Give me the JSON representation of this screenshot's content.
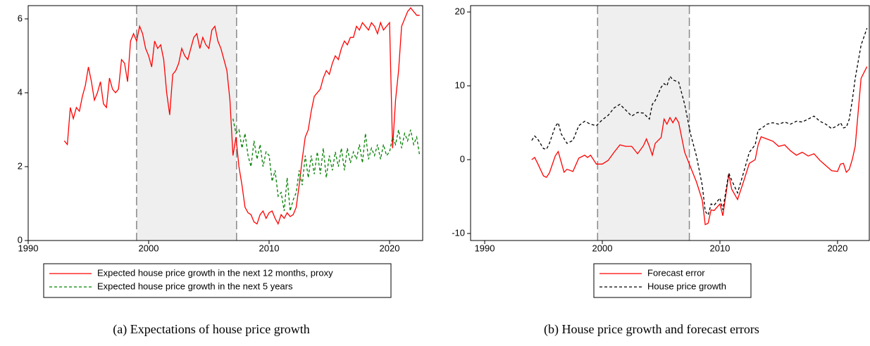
{
  "chart_data": [
    {
      "type": "line",
      "caption": "(a) Expectations of house price growth",
      "xlim": [
        1990,
        2022.75
      ],
      "ylim": [
        0,
        6.36
      ],
      "xticks": [
        1990,
        2000,
        2010,
        2020
      ],
      "yticks": [
        0,
        2,
        4,
        6
      ],
      "shaded_region": [
        1999,
        2007.3
      ],
      "legend": "bottom",
      "series": [
        {
          "name": "Expected house price growth in the next 12 months, proxy",
          "color": "#ff0000",
          "line_style": "solid",
          "x": [
            1993,
            1993.25,
            1993.5,
            1993.75,
            1994,
            1994.25,
            1994.5,
            1994.75,
            1995,
            1995.25,
            1995.5,
            1995.75,
            1996,
            1996.25,
            1996.5,
            1996.75,
            1997,
            1997.25,
            1997.5,
            1997.75,
            1998,
            1998.25,
            1998.5,
            1998.75,
            1999,
            1999.25,
            1999.5,
            1999.75,
            2000,
            2000.25,
            2000.5,
            2000.75,
            2001,
            2001.25,
            2001.5,
            2001.75,
            2002,
            2002.25,
            2002.5,
            2002.75,
            2003,
            2003.25,
            2003.5,
            2003.75,
            2004,
            2004.25,
            2004.5,
            2004.75,
            2005,
            2005.25,
            2005.5,
            2005.75,
            2006,
            2006.25,
            2006.5,
            2006.75,
            2007,
            2007.25,
            2007.5,
            2007.75,
            2008,
            2008.25,
            2008.5,
            2008.75,
            2009,
            2009.25,
            2009.5,
            2009.75,
            2010,
            2010.25,
            2010.5,
            2010.75,
            2011,
            2011.25,
            2011.5,
            2011.75,
            2012,
            2012.25,
            2012.5,
            2012.75,
            2013,
            2013.25,
            2013.5,
            2013.75,
            2014,
            2014.25,
            2014.5,
            2014.75,
            2015,
            2015.25,
            2015.5,
            2015.75,
            2016,
            2016.25,
            2016.5,
            2016.75,
            2017,
            2017.25,
            2017.5,
            2017.75,
            2018,
            2018.25,
            2018.5,
            2018.75,
            2019,
            2019.25,
            2019.5,
            2019.75,
            2020,
            2020.25,
            2020.5,
            2020.75,
            2021,
            2021.25,
            2021.5,
            2021.75,
            2022,
            2022.25,
            2022.5
          ],
          "values": [
            2.7,
            2.6,
            3.6,
            3.3,
            3.6,
            3.5,
            3.9,
            4.2,
            4.7,
            4.3,
            3.8,
            4.0,
            4.3,
            3.7,
            3.6,
            4.4,
            4.1,
            4.0,
            4.1,
            4.9,
            4.8,
            4.3,
            5.4,
            5.6,
            5.4,
            5.8,
            5.6,
            5.2,
            5.0,
            4.7,
            5.4,
            5.2,
            5.3,
            4.9,
            4.0,
            3.4,
            4.5,
            4.6,
            4.8,
            5.2,
            5.0,
            4.9,
            5.2,
            5.5,
            5.6,
            5.2,
            5.5,
            5.3,
            5.2,
            5.7,
            5.8,
            5.4,
            5.2,
            4.9,
            4.6,
            3.8,
            2.3,
            2.8,
            2.0,
            1.5,
            0.9,
            0.75,
            0.7,
            0.5,
            0.45,
            0.7,
            0.8,
            0.6,
            0.75,
            0.8,
            0.6,
            0.45,
            0.7,
            0.6,
            0.75,
            0.65,
            0.7,
            0.9,
            1.5,
            2.2,
            2.8,
            3.0,
            3.5,
            3.9,
            4.0,
            4.1,
            4.4,
            4.6,
            4.5,
            4.8,
            5.0,
            4.9,
            5.2,
            5.4,
            5.3,
            5.5,
            5.5,
            5.8,
            5.7,
            5.9,
            5.8,
            5.7,
            5.9,
            5.8,
            5.6,
            5.9,
            5.7,
            5.8,
            5.9,
            2.5,
            3.8,
            4.6,
            5.8,
            6.0,
            6.2,
            6.3,
            6.2,
            6.1,
            6.1
          ]
        },
        {
          "name": "Expected house price growth in the next 5 years",
          "color": "#008000",
          "line_style": "dashed",
          "x": [
            2007,
            2007.25,
            2007.5,
            2007.75,
            2008,
            2008.25,
            2008.5,
            2008.75,
            2009,
            2009.25,
            2009.5,
            2009.75,
            2010,
            2010.25,
            2010.5,
            2010.75,
            2011,
            2011.25,
            2011.5,
            2011.75,
            2012,
            2012.25,
            2012.5,
            2012.75,
            2013,
            2013.25,
            2013.5,
            2013.75,
            2014,
            2014.25,
            2014.5,
            2014.75,
            2015,
            2015.25,
            2015.5,
            2015.75,
            2016,
            2016.25,
            2016.5,
            2016.75,
            2017,
            2017.25,
            2017.5,
            2017.75,
            2018,
            2018.25,
            2018.5,
            2018.75,
            2019,
            2019.25,
            2019.5,
            2019.75,
            2020,
            2020.25,
            2020.5,
            2020.75,
            2021,
            2021.25,
            2021.5,
            2021.75,
            2022,
            2022.25,
            2022.5
          ],
          "values": [
            3.3,
            2.9,
            3.0,
            2.5,
            2.9,
            2.3,
            2.0,
            2.7,
            2.2,
            2.6,
            2.0,
            2.4,
            2.3,
            1.6,
            1.9,
            1.2,
            1.3,
            0.8,
            1.7,
            0.8,
            1.1,
            1.3,
            1.9,
            1.5,
            2.3,
            1.7,
            2.3,
            1.8,
            2.4,
            1.8,
            2.5,
            1.7,
            2.3,
            1.9,
            2.4,
            2.0,
            2.5,
            1.9,
            2.5,
            2.1,
            2.4,
            2.2,
            2.6,
            2.1,
            2.9,
            2.2,
            2.5,
            2.3,
            2.6,
            2.2,
            2.6,
            2.3,
            2.4,
            2.8,
            2.6,
            3.0,
            2.5,
            2.9,
            2.7,
            3.0,
            2.6,
            2.8,
            2.3
          ]
        }
      ]
    },
    {
      "type": "line",
      "caption": "(b) House price growth and forecast errors",
      "xlim": [
        1988.8,
        2022.7
      ],
      "ylim": [
        -10.95,
        20.86
      ],
      "xticks": [
        1990,
        2000,
        2010,
        2020
      ],
      "yticks": [
        -10,
        0,
        10,
        20
      ],
      "shaded_region": [
        1999.6,
        2007.4
      ],
      "legend": "bottom",
      "series": [
        {
          "name": "Forecast error",
          "color": "#ff0000",
          "line_style": "solid",
          "x": [
            1994,
            1994.25,
            1994.5,
            1995,
            1995.25,
            1995.5,
            1996,
            1996.25,
            1996.5,
            1996.75,
            1997,
            1997.5,
            1998,
            1998.5,
            1998.75,
            1999,
            1999.5,
            2000,
            2000.5,
            2001,
            2001.5,
            2002,
            2002.5,
            2003,
            2003.5,
            2003.75,
            2004,
            2004.25,
            2004.5,
            2005,
            2005.25,
            2005.5,
            2005.75,
            2006,
            2006.25,
            2006.5,
            2007,
            2007.5,
            2008,
            2008.5,
            2008.75,
            2009,
            2009.25,
            2009.5,
            2010,
            2010.25,
            2010.75,
            2011,
            2011.5,
            2012,
            2012.5,
            2013,
            2013.25,
            2013.5,
            2014,
            2014.5,
            2015,
            2015.5,
            2016,
            2016.5,
            2017,
            2017.5,
            2018,
            2018.5,
            2019,
            2019.5,
            2020,
            2020.25,
            2020.5,
            2020.75,
            2021,
            2021.25,
            2021.5,
            2022,
            2022.5
          ],
          "values": [
            0,
            0.3,
            -0.5,
            -2.2,
            -2.4,
            -1.8,
            0.5,
            1.1,
            -0.3,
            -1.7,
            -1.3,
            -1.6,
            0.2,
            0.6,
            0.3,
            0.6,
            -0.6,
            -0.6,
            -0.1,
            1.0,
            2.0,
            1.8,
            1.8,
            0.8,
            1.9,
            2.8,
            1.8,
            0.6,
            2.2,
            3.0,
            5.5,
            4.8,
            5.7,
            5.0,
            5.7,
            5.0,
            1.0,
            -1.0,
            -3.0,
            -5.5,
            -8.8,
            -8.6,
            -6.8,
            -6.9,
            -6.0,
            -7.6,
            -2.0,
            -4.0,
            -5.4,
            -3.0,
            -0.5,
            0.0,
            2.0,
            3.1,
            2.8,
            2.5,
            1.8,
            2.0,
            1.2,
            0.6,
            1.0,
            0.5,
            0.8,
            -0.1,
            -0.8,
            -1.5,
            -1.6,
            -0.6,
            -0.5,
            -1.7,
            -1.3,
            0,
            1.8,
            11,
            12.6
          ]
        },
        {
          "name": "House price growth",
          "color": "#000000",
          "line_style": "dashed",
          "x": [
            1994,
            1994.25,
            1994.5,
            1995,
            1995.25,
            1995.5,
            1996,
            1996.25,
            1996.5,
            1997,
            1997.5,
            1998,
            1998.5,
            1999,
            1999.5,
            2000,
            2000.5,
            2001,
            2001.5,
            2002,
            2002.5,
            2003,
            2003.5,
            2004,
            2004.25,
            2004.5,
            2005,
            2005.25,
            2005.5,
            2005.75,
            2006,
            2006.5,
            2007,
            2007.5,
            2008,
            2008.5,
            2008.75,
            2009,
            2009.25,
            2009.5,
            2010,
            2010.25,
            2010.75,
            2011,
            2011.5,
            2012,
            2012.5,
            2013,
            2013.25,
            2013.5,
            2014,
            2014.5,
            2015,
            2015.5,
            2016,
            2016.5,
            2017,
            2017.5,
            2018,
            2018.5,
            2019,
            2019.5,
            2020,
            2020.25,
            2020.5,
            2020.75,
            2021,
            2021.25,
            2021.5,
            2022,
            2022.5
          ],
          "values": [
            2.6,
            3.2,
            2.8,
            1.5,
            1.4,
            2.2,
            4.5,
            5.0,
            3.5,
            2.2,
            2.6,
            4.6,
            5.2,
            4.8,
            4.6,
            5.4,
            6.0,
            7.0,
            7.5,
            6.7,
            5.9,
            6.4,
            6.3,
            5.5,
            7.5,
            8.0,
            9.8,
            10.3,
            10.0,
            11.3,
            10.8,
            10.5,
            7.5,
            3.5,
            0.5,
            -3.5,
            -7.0,
            -7.5,
            -6.0,
            -6.2,
            -5.2,
            -6.8,
            -1.8,
            -2.8,
            -4.5,
            -1.8,
            1.0,
            2.0,
            4.0,
            4.2,
            4.8,
            5.0,
            4.8,
            5.1,
            4.8,
            5.2,
            5.1,
            5.5,
            5.9,
            5.2,
            4.8,
            4.2,
            4.6,
            5.0,
            4.3,
            4.4,
            5.5,
            8.0,
            11.0,
            15.5,
            17.8
          ]
        }
      ]
    }
  ]
}
